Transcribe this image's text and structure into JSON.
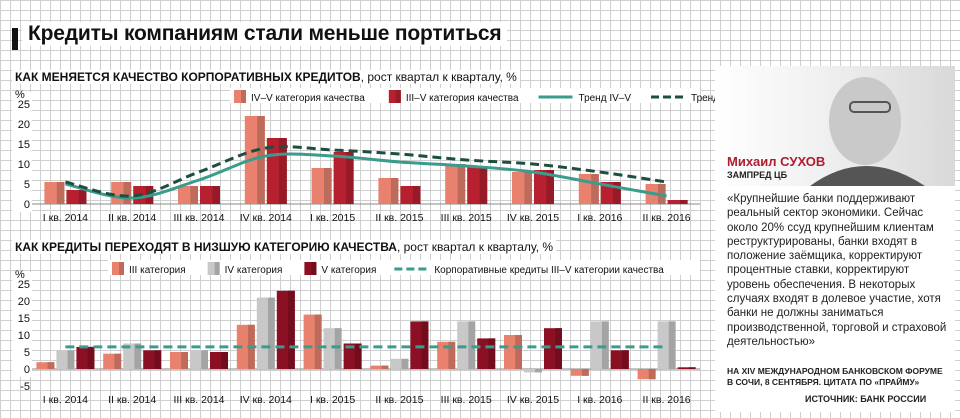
{
  "title": "Кредиты компаниям стали меньше портиться",
  "chart_data": [
    {
      "type": "bar",
      "title": "КАК МЕНЯЕТСЯ КАЧЕСТВО КОРПОРАТИВНЫХ КРЕДИТОВ",
      "subtitle": ", рост квартал к кварталу, %",
      "ylabel": "%",
      "ylim": [
        0,
        25
      ],
      "yticks": [
        "0",
        "5",
        "10",
        "15",
        "20",
        "25"
      ],
      "categories": [
        "I кв. 2014",
        "II кв. 2014",
        "III кв. 2014",
        "IV кв. 2014",
        "I кв. 2015",
        "II кв. 2015",
        "III кв. 2015",
        "IV кв. 2015",
        "I кв. 2016",
        "II кв. 2016"
      ],
      "series": [
        {
          "name": "IV–V категория качества",
          "kind": "bar",
          "color": "#e8826f",
          "values": [
            5.5,
            5.5,
            4.5,
            22,
            9,
            6.5,
            10,
            8,
            7.5,
            5
          ]
        },
        {
          "name": "III–V категория качества",
          "kind": "bar",
          "color": "#b7202f",
          "values": [
            3.5,
            4.5,
            4.5,
            16.5,
            13,
            4.5,
            9.5,
            8.5,
            5.5,
            1
          ]
        },
        {
          "name": "Тренд IV–V",
          "kind": "line",
          "color": "#3a9c8c",
          "values": [
            5,
            1.5,
            6,
            12,
            12,
            10.5,
            9.5,
            8,
            5,
            2
          ]
        },
        {
          "name": "Тренд III–V",
          "kind": "dash",
          "color": "#1c4f40",
          "values": [
            5.5,
            2,
            8,
            14,
            13.5,
            12.5,
            11,
            10,
            8,
            5.5
          ]
        }
      ]
    },
    {
      "type": "bar",
      "title": "КАК КРЕДИТЫ ПЕРЕХОДЯТ В НИЗШУЮ КАТЕГОРИЮ КАЧЕСТВА",
      "subtitle": ", рост квартал к кварталу, %",
      "ylabel": "%",
      "ylim": [
        -5,
        25
      ],
      "yticks": [
        "-5",
        "0",
        "5",
        "10",
        "15",
        "20",
        "25"
      ],
      "categories": [
        "I кв. 2014",
        "II кв. 2014",
        "III кв. 2014",
        "IV кв. 2014",
        "I кв. 2015",
        "II кв. 2015",
        "III кв. 2015",
        "IV кв. 2015",
        "I кв. 2016",
        "II кв. 2016"
      ],
      "series": [
        {
          "name": "III категория",
          "kind": "bar",
          "color": "#e8826f",
          "values": [
            2,
            4.5,
            5,
            13,
            16,
            1,
            8,
            10,
            -2,
            -3
          ]
        },
        {
          "name": "IV категория",
          "kind": "bar",
          "color": "#c8c8c8",
          "values": [
            5.5,
            7.5,
            5.5,
            21,
            12,
            3,
            14,
            -1,
            14,
            14
          ]
        },
        {
          "name": "V категория",
          "kind": "bar",
          "color": "#8c1023",
          "values": [
            6.5,
            5.5,
            5,
            23,
            7.5,
            14,
            9,
            12,
            5.5,
            0.5
          ]
        },
        {
          "name": "Корпоративные кредиты III–V категории качества",
          "kind": "dash",
          "color": "#3a9c8c",
          "values": [
            6.5,
            6.5,
            6.5,
            6.5,
            6.5,
            6.5,
            6.5,
            6.5,
            6.5,
            6.5
          ]
        }
      ]
    }
  ],
  "panel": {
    "name": "Михаил СУХОВ",
    "role": "ЗАМПРЕД ЦБ",
    "quote": "«Крупнейшие банки поддерживают реальный сектор экономики. Сейчас около 20% ссуд крупнейшим клиентам реструктурированы, банки входят в положение заёмщика, корректируют процентные ставки, корректируют уровень обеспечения. В некоторых случаях входят в долевое участие, хотя банки не должны заниматься производственной, торговой и страховой деятельностью»",
    "caption": "НА XIV МЕЖДУНАРОДНОМ БАНКОВСКОМ ФОРУМЕ В СОЧИ, 8 СЕНТЯБРЯ. ЦИТАТА ПО «ПРАЙМУ»"
  },
  "source": "ИСТОЧНИК: БАНК РОССИИ"
}
